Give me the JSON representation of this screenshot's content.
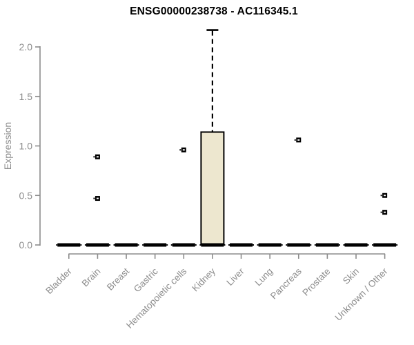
{
  "title": "ENSG00000238738 - AC116345.1",
  "chart_data": {
    "type": "boxplot",
    "title": "ENSG00000238738 - AC116345.1",
    "xlabel": "",
    "ylabel": "Expression",
    "ylim": [
      0,
      2.2
    ],
    "yticks": [
      0.0,
      0.5,
      1.0,
      1.5,
      2.0
    ],
    "ytick_labels": [
      "0.0",
      "0.5",
      "1.0",
      "1.5",
      "2.0"
    ],
    "grid": false,
    "legend": false,
    "categories": [
      "Bladder",
      "Brain",
      "Breast",
      "Gastric",
      "Hematopoietic cells",
      "Kidney",
      "Liver",
      "Lung",
      "Pancreas",
      "Prostate",
      "Skin",
      "Unknown / Other"
    ],
    "boxes": [
      {
        "name": "Bladder",
        "whislo": 0,
        "q1": 0,
        "med": 0,
        "q3": 0,
        "whishi": 0,
        "outliers": []
      },
      {
        "name": "Brain",
        "whislo": 0,
        "q1": 0,
        "med": 0,
        "q3": 0,
        "whishi": 0,
        "outliers": [
          0.47,
          0.89
        ]
      },
      {
        "name": "Breast",
        "whislo": 0,
        "q1": 0,
        "med": 0,
        "q3": 0,
        "whishi": 0,
        "outliers": []
      },
      {
        "name": "Gastric",
        "whislo": 0,
        "q1": 0,
        "med": 0,
        "q3": 0,
        "whishi": 0,
        "outliers": []
      },
      {
        "name": "Hematopoietic cells",
        "whislo": 0,
        "q1": 0,
        "med": 0,
        "q3": 0,
        "whishi": 0,
        "outliers": [
          0.96
        ]
      },
      {
        "name": "Kidney",
        "whislo": 0,
        "q1": 0,
        "med": 0,
        "q3": 1.14,
        "whishi": 2.17,
        "outliers": []
      },
      {
        "name": "Liver",
        "whislo": 0,
        "q1": 0,
        "med": 0,
        "q3": 0,
        "whishi": 0,
        "outliers": []
      },
      {
        "name": "Lung",
        "whislo": 0,
        "q1": 0,
        "med": 0,
        "q3": 0,
        "whishi": 0,
        "outliers": []
      },
      {
        "name": "Pancreas",
        "whislo": 0,
        "q1": 0,
        "med": 0,
        "q3": 0,
        "whishi": 0,
        "outliers": [
          1.06
        ]
      },
      {
        "name": "Prostate",
        "whislo": 0,
        "q1": 0,
        "med": 0,
        "q3": 0,
        "whishi": 0,
        "outliers": []
      },
      {
        "name": "Skin",
        "whislo": 0,
        "q1": 0,
        "med": 0,
        "q3": 0,
        "whishi": 0,
        "outliers": []
      },
      {
        "name": "Unknown / Other",
        "whislo": 0,
        "q1": 0,
        "med": 0,
        "q3": 0,
        "whishi": 0,
        "outliers": [
          0.33,
          0.5
        ]
      }
    ],
    "colors": {
      "box_fill": "#EDE7CF",
      "box_border": "#000000",
      "median": "#000000",
      "whisker": "#000000",
      "outlier": "#000000",
      "axis": "#8C8C8C",
      "tick_label": "#8C8C8C",
      "title": "#000000",
      "background": "#FFFFFF"
    }
  }
}
